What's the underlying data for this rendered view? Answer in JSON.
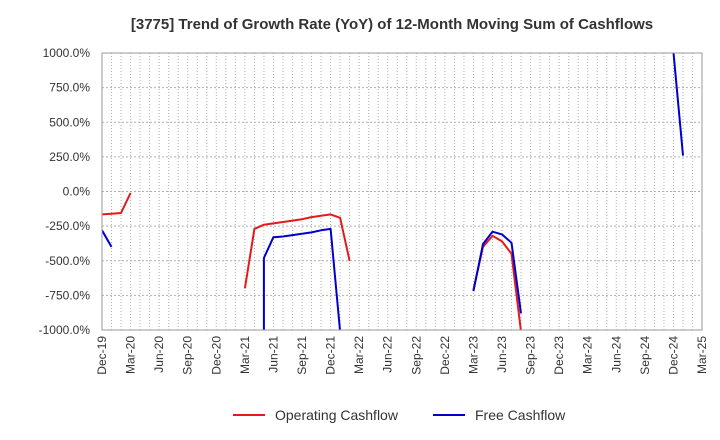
{
  "chart_data": {
    "type": "line",
    "title": "[3775]  Trend of Growth Rate (YoY) of 12-Month Moving Sum of Cashflows",
    "xlabel": "",
    "ylabel": "",
    "ylim": [
      -1000,
      1000
    ],
    "y_ticks": [
      1000,
      750,
      500,
      250,
      0,
      -250,
      -500,
      -750,
      -1000
    ],
    "y_tick_labels": [
      "1000.0%",
      "750.0%",
      "500.0%",
      "250.0%",
      "0.0%",
      "-250.0%",
      "-500.0%",
      "-750.0%",
      "-1000.0%"
    ],
    "x_tick_labels": [
      "Dec-19",
      "Mar-20",
      "Jun-20",
      "Sep-20",
      "Dec-20",
      "Mar-21",
      "Jun-21",
      "Sep-21",
      "Dec-21",
      "Mar-22",
      "Jun-22",
      "Sep-22",
      "Dec-22",
      "Mar-23",
      "Jun-23",
      "Sep-23",
      "Dec-23",
      "Mar-24",
      "Jun-24",
      "Sep-24",
      "Dec-24",
      "Mar-25"
    ],
    "x_start": "2019-12",
    "grid": true,
    "legend_position": "bottom-center",
    "series": [
      {
        "name": "Operating Cashflow",
        "color": "#e31a1c",
        "points": [
          [
            "2019-12",
            -165
          ],
          [
            "2020-01",
            -160
          ],
          [
            "2020-02",
            -155
          ],
          [
            "2020-03",
            -10
          ],
          [
            "2021-03",
            -700
          ],
          [
            "2021-04",
            -270
          ],
          [
            "2021-05",
            -240
          ],
          [
            "2021-06",
            -230
          ],
          [
            "2021-07",
            -220
          ],
          [
            "2021-08",
            -210
          ],
          [
            "2021-09",
            -200
          ],
          [
            "2021-10",
            -185
          ],
          [
            "2021-11",
            -175
          ],
          [
            "2021-12",
            -165
          ],
          [
            "2022-01",
            -190
          ],
          [
            "2022-02",
            -500
          ],
          [
            "2023-03",
            -710
          ],
          [
            "2023-04",
            -400
          ],
          [
            "2023-05",
            -320
          ],
          [
            "2023-06",
            -360
          ],
          [
            "2023-07",
            -450
          ],
          [
            "2023-08",
            -1010
          ]
        ]
      },
      {
        "name": "Free Cashflow",
        "color": "#0000cc",
        "points": [
          [
            "2019-12",
            -280
          ],
          [
            "2020-01",
            -400
          ],
          [
            "2021-05",
            -1010
          ],
          [
            "2021-05",
            -480
          ],
          [
            "2021-06",
            -330
          ],
          [
            "2021-07",
            -325
          ],
          [
            "2021-08",
            -315
          ],
          [
            "2021-09",
            -305
          ],
          [
            "2021-10",
            -295
          ],
          [
            "2021-11",
            -280
          ],
          [
            "2021-12",
            -270
          ],
          [
            "2022-01",
            -1010
          ],
          [
            "2023-03",
            -720
          ],
          [
            "2023-04",
            -380
          ],
          [
            "2023-05",
            -290
          ],
          [
            "2023-06",
            -310
          ],
          [
            "2023-07",
            -370
          ],
          [
            "2023-08",
            -880
          ],
          [
            "2024-12",
            1010
          ],
          [
            "2025-01",
            260
          ]
        ]
      }
    ]
  }
}
